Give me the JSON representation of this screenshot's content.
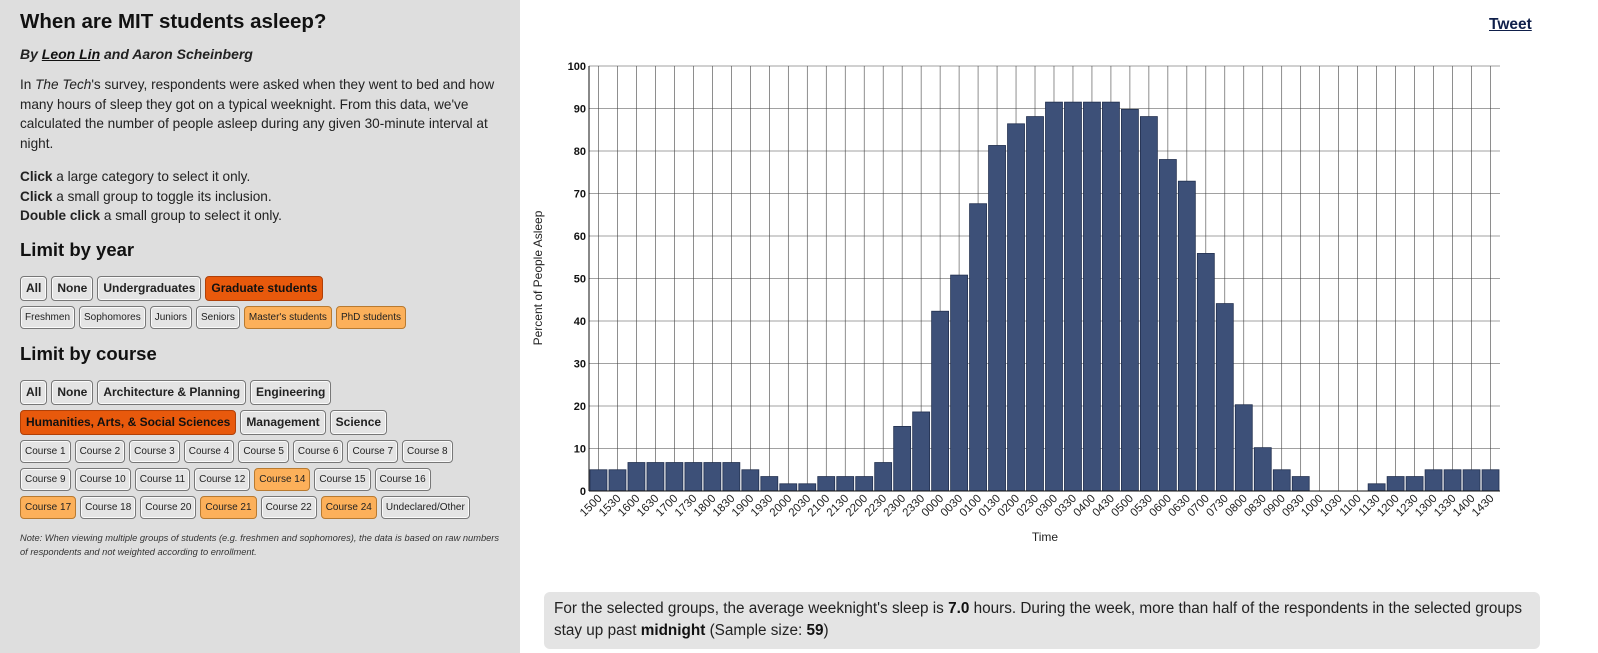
{
  "title": "When are MIT students asleep?",
  "byline": {
    "prefix": "By",
    "author1": "Leon Lin",
    "conjunction": "and",
    "author2": "Aaron Scheinberg"
  },
  "intro": {
    "before": "In",
    "publication": "The Tech",
    "after": "'s survey, respondents were asked when they went to bed and how many hours of sleep they got on a typical weeknight. From this data, we've calculated the number of people asleep during any given 30-minute interval at night."
  },
  "instructions": [
    {
      "strong": "Click",
      "rest": "a large category to select it only."
    },
    {
      "strong": "Click",
      "rest": "a small group to toggle its inclusion."
    },
    {
      "strong": "Double click",
      "rest": "a small group to select it only."
    }
  ],
  "year_filter": {
    "heading": "Limit by year",
    "large": [
      {
        "label": "All",
        "state": "off"
      },
      {
        "label": "None",
        "state": "off"
      },
      {
        "label": "Undergraduates",
        "state": "off"
      },
      {
        "label": "Graduate students",
        "state": "strong"
      }
    ],
    "small": [
      {
        "label": "Freshmen",
        "state": "off"
      },
      {
        "label": "Sophomores",
        "state": "off"
      },
      {
        "label": "Juniors",
        "state": "off"
      },
      {
        "label": "Seniors",
        "state": "off"
      },
      {
        "label": "Master's students",
        "state": "light"
      },
      {
        "label": "PhD students",
        "state": "light"
      }
    ]
  },
  "course_filter": {
    "heading": "Limit by course",
    "large_rows": [
      [
        {
          "label": "All",
          "state": "off"
        },
        {
          "label": "None",
          "state": "off"
        },
        {
          "label": "Architecture & Planning",
          "state": "off"
        },
        {
          "label": "Engineering",
          "state": "off"
        }
      ],
      [
        {
          "label": "Humanities, Arts, & Social Sciences",
          "state": "strong"
        },
        {
          "label": "Management",
          "state": "off"
        },
        {
          "label": "Science",
          "state": "off"
        }
      ]
    ],
    "small_rows": [
      [
        {
          "label": "Course 1",
          "state": "off"
        },
        {
          "label": "Course 2",
          "state": "off"
        },
        {
          "label": "Course 3",
          "state": "off"
        },
        {
          "label": "Course 4",
          "state": "off"
        },
        {
          "label": "Course 5",
          "state": "off"
        },
        {
          "label": "Course 6",
          "state": "off"
        },
        {
          "label": "Course 7",
          "state": "off"
        },
        {
          "label": "Course 8",
          "state": "off"
        }
      ],
      [
        {
          "label": "Course 9",
          "state": "off"
        },
        {
          "label": "Course 10",
          "state": "off"
        },
        {
          "label": "Course 11",
          "state": "off"
        },
        {
          "label": "Course 12",
          "state": "off"
        },
        {
          "label": "Course 14",
          "state": "light"
        },
        {
          "label": "Course 15",
          "state": "off"
        },
        {
          "label": "Course 16",
          "state": "off"
        }
      ],
      [
        {
          "label": "Course 17",
          "state": "light"
        },
        {
          "label": "Course 18",
          "state": "off"
        },
        {
          "label": "Course 20",
          "state": "off"
        },
        {
          "label": "Course 21",
          "state": "light"
        },
        {
          "label": "Course 22",
          "state": "off"
        },
        {
          "label": "Course 24",
          "state": "light"
        },
        {
          "label": "Undeclared/Other",
          "state": "off"
        }
      ]
    ]
  },
  "note": "Note: When viewing multiple groups of students (e.g. freshmen and sophomores), the data is based on raw numbers of respondents and not weighted according to enrollment.",
  "tweet_label": "Tweet",
  "summary": {
    "text1": "For the selected groups, the average weeknight's sleep is",
    "avg_hours": "7.0",
    "text2": "hours. During the week, more than half of the respondents in the selected groups stay up past",
    "past_time": "midnight",
    "text3": "(Sample size:",
    "sample_size": "59",
    "text4": ")"
  },
  "colors": {
    "bar": "#3d5078",
    "bar_stroke": "#22304f",
    "selected_strong": "#e8590c",
    "selected_light": "#fcb05a",
    "sidebar_bg": "#dedede"
  },
  "chart_data": {
    "type": "bar",
    "xlabel": "Time",
    "ylabel": "Percent of People Asleep",
    "ylim": [
      0,
      100
    ],
    "yticks": [
      0,
      10,
      20,
      30,
      40,
      50,
      60,
      70,
      80,
      90,
      100
    ],
    "grid": true,
    "categories": [
      "1500",
      "1530",
      "1600",
      "1630",
      "1700",
      "1730",
      "1800",
      "1830",
      "1900",
      "1930",
      "2000",
      "2030",
      "2100",
      "2130",
      "2200",
      "2230",
      "2300",
      "2330",
      "0000",
      "0030",
      "0100",
      "0130",
      "0200",
      "0230",
      "0300",
      "0330",
      "0400",
      "0430",
      "0500",
      "0530",
      "0600",
      "0630",
      "0700",
      "0730",
      "0800",
      "0830",
      "0900",
      "0930",
      "1000",
      "1030",
      "1100",
      "1130",
      "1200",
      "1230",
      "1300",
      "1330",
      "1400",
      "1430"
    ],
    "values": [
      5,
      5,
      6.7,
      6.7,
      6.7,
      6.7,
      6.7,
      6.7,
      5,
      3.4,
      1.7,
      1.7,
      3.4,
      3.4,
      3.4,
      6.7,
      15.2,
      18.6,
      42.3,
      50.8,
      67.6,
      81.3,
      86.4,
      88.1,
      91.5,
      91.5,
      91.5,
      91.5,
      89.8,
      88.1,
      78,
      72.9,
      55.9,
      44.1,
      20.3,
      10.2,
      5,
      3.4,
      0,
      0,
      0,
      1.7,
      3.4,
      3.4,
      5,
      5,
      5,
      5
    ]
  }
}
